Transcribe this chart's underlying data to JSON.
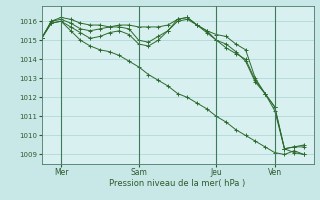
{
  "background_color": "#c8e8e8",
  "plot_bg_color": "#d8f0f0",
  "grid_color": "#a0cccc",
  "line_color": "#2d6a2d",
  "xlabel": "Pression niveau de la mer( hPa )",
  "ylim": [
    1008.5,
    1016.8
  ],
  "yticks": [
    1009,
    1010,
    1011,
    1012,
    1013,
    1014,
    1015,
    1016
  ],
  "day_labels": [
    "Mer",
    "Sam",
    "Jeu",
    "Ven"
  ],
  "day_positions": [
    2,
    10,
    18,
    24
  ],
  "xlim": [
    0,
    28
  ],
  "series": [
    {
      "x": [
        0,
        1,
        2,
        3,
        4,
        5,
        6,
        7,
        8,
        9,
        10,
        11,
        12,
        13,
        14,
        15,
        16,
        17,
        18,
        19,
        20,
        21,
        22,
        23,
        24,
        25,
        26,
        27
      ],
      "y": [
        1015.1,
        1016.0,
        1016.2,
        1016.1,
        1015.9,
        1015.8,
        1015.8,
        1015.7,
        1015.8,
        1015.8,
        1015.7,
        1015.7,
        1015.7,
        1015.8,
        1016.1,
        1016.2,
        1015.8,
        1015.5,
        1015.3,
        1015.2,
        1014.8,
        1014.5,
        1013.0,
        1012.2,
        1011.3,
        1009.3,
        1009.1,
        1009.0
      ]
    },
    {
      "x": [
        0,
        1,
        2,
        3,
        4,
        5,
        6,
        7,
        8,
        9,
        10,
        11,
        12,
        13,
        14,
        15,
        16,
        17,
        18,
        19,
        20,
        21,
        22,
        23,
        24,
        25,
        26,
        27
      ],
      "y": [
        1015.1,
        1016.0,
        1016.1,
        1015.9,
        1015.6,
        1015.5,
        1015.6,
        1015.7,
        1015.7,
        1015.6,
        1015.0,
        1014.9,
        1015.2,
        1015.5,
        1016.1,
        1016.2,
        1015.8,
        1015.5,
        1015.0,
        1014.8,
        1014.4,
        1013.9,
        1012.8,
        1012.2,
        1011.5,
        1009.3,
        1009.4,
        1009.5
      ]
    },
    {
      "x": [
        0,
        1,
        2,
        3,
        4,
        5,
        6,
        7,
        8,
        9,
        10,
        11,
        12,
        13,
        14,
        15,
        16,
        17,
        18,
        19,
        20,
        21,
        22,
        23,
        24,
        25,
        26,
        27
      ],
      "y": [
        1015.1,
        1015.9,
        1016.0,
        1015.7,
        1015.4,
        1015.1,
        1015.2,
        1015.4,
        1015.5,
        1015.3,
        1014.8,
        1014.7,
        1015.0,
        1015.5,
        1016.0,
        1016.1,
        1015.8,
        1015.4,
        1015.0,
        1014.6,
        1014.3,
        1014.0,
        1012.9,
        1012.2,
        1011.5,
        1009.3,
        1009.4,
        1009.4
      ]
    },
    {
      "x": [
        0,
        1,
        2,
        3,
        4,
        5,
        6,
        7,
        8,
        9,
        10,
        11,
        12,
        13,
        14,
        15,
        16,
        17,
        18,
        19,
        20,
        21,
        22,
        23,
        24,
        25,
        26,
        27
      ],
      "y": [
        1015.1,
        1015.9,
        1016.0,
        1015.5,
        1015.0,
        1014.7,
        1014.5,
        1014.4,
        1014.2,
        1013.9,
        1013.6,
        1013.2,
        1012.9,
        1012.6,
        1012.2,
        1012.0,
        1011.7,
        1011.4,
        1011.0,
        1010.7,
        1010.3,
        1010.0,
        1009.7,
        1009.4,
        1009.1,
        1009.0,
        1009.2,
        1009.0
      ]
    }
  ]
}
